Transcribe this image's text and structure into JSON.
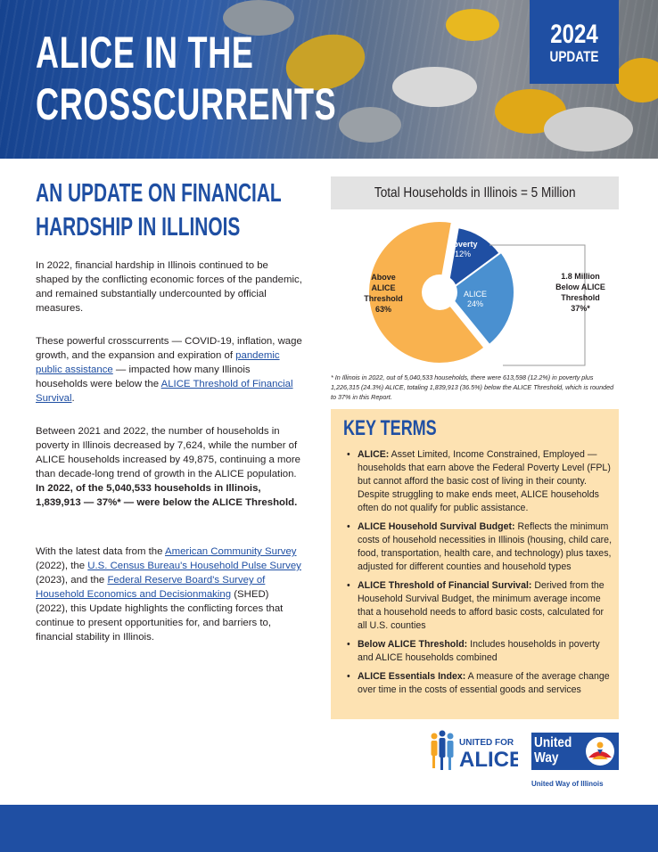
{
  "header": {
    "title_line1": "ALICE IN THE",
    "title_line2": "CROSSCURRENTS",
    "badge_year": "2024",
    "badge_text": "UPDATE"
  },
  "main": {
    "subheading_line1": "AN UPDATE ON FINANCIAL",
    "subheading_line2": "HARDSHIP IN ILLINOIS",
    "p1": "In 2022, financial hardship in Illinois continued to be shaped by the conflicting economic forces of the pandemic, and remained substantially undercounted by official measures.",
    "p2_a": "These powerful crosscurrents — COVID-19, inflation, wage growth, and the expansion and expiration of ",
    "p2_link1": "pandemic public assistance",
    "p2_b": " — impacted how many Illinois households were below the ",
    "p2_link2": "ALICE Threshold of Financial Survival",
    "p2_c": ".",
    "p3_a": "Between 2021 and 2022, the number of households in poverty in Illinois decreased by 7,624, while the number of ALICE households increased by 49,875, continuing a more than decade-long trend of growth in the ALICE population. ",
    "p3_bold": "In 2022, of the 5,040,533 households in Illinois, 1,839,913 — 37%* — were below the ALICE Threshold.",
    "p4_a": "With the latest data from the ",
    "p4_link1": "American Community Survey",
    "p4_b": " (2022), the ",
    "p4_link2": "U.S. Census Bureau's Household Pulse Survey",
    "p4_c": " (2023), and the ",
    "p4_link3": "Federal Reserve Board's Survey of Household Economics and Decisionmaking",
    "p4_d": " (SHED) (2022), this Update highlights the conflicting forces that continue to present opportunities for, and barriers to, financial stability in Illinois."
  },
  "chart_data": {
    "type": "pie",
    "title": "Total Households in Illinois = 5 Million",
    "slices": [
      {
        "label": "Poverty",
        "value": 12,
        "display": "12%",
        "color": "#1f4fa3"
      },
      {
        "label": "ALICE",
        "value": 24,
        "display": "24%",
        "color": "#4a90d0"
      },
      {
        "label": "Above ALICE Threshold",
        "value": 63,
        "display": "63%",
        "color": "#f9b24f"
      }
    ],
    "callout_line1": "1.8 Million",
    "callout_line2": "Below ALICE",
    "callout_line3": "Threshold",
    "callout_line4": "37%*",
    "above_line1": "Above",
    "above_line2": "ALICE",
    "above_line3": "Threshold",
    "above_line4": "63%",
    "footnote": "* In Illinois in 2022, out of 5,040,533 households, there were 613,598 (12.2%) in poverty plus 1,226,315 (24.3%) ALICE, totaling 1,839,913 (36.5%) below the ALICE Threshold, which is rounded to 37% in this Report."
  },
  "key_terms": {
    "title": "KEY TERMS",
    "items": [
      {
        "term": "ALICE:",
        "text": " Asset Limited, Income Constrained, Employed — households that earn above the Federal Poverty Level (FPL) but cannot afford the basic cost of living in their county. Despite struggling to make ends meet, ALICE households often do not qualify for public assistance."
      },
      {
        "term": "ALICE Household Survival Budget:",
        "text": " Reflects the minimum costs of household necessities in Illinois (housing, child care, food, transportation, health care, and technology) plus taxes, adjusted for different counties and household types"
      },
      {
        "term": "ALICE Threshold of Financial Survival:",
        "text": " Derived from the Household Survival Budget, the minimum average income that a household needs to afford basic costs, calculated for all U.S. counties"
      },
      {
        "term": "Below ALICE Threshold:",
        "text": " Includes households in poverty and ALICE households combined"
      },
      {
        "term": "ALICE Essentials Index:",
        "text": " A measure of the average change over time in the costs of essential goods and services"
      }
    ]
  },
  "logos": {
    "alice_line1": "UNITED FOR",
    "alice_line2": "ALICE",
    "uw_line1": "United",
    "uw_line2": "Way",
    "uw_caption": "United Way of Illinois"
  },
  "colors": {
    "brand_blue": "#1f4fa3",
    "alice_blue": "#4a90d0",
    "orange": "#f9b24f",
    "key_terms_bg": "#fde2b2"
  }
}
